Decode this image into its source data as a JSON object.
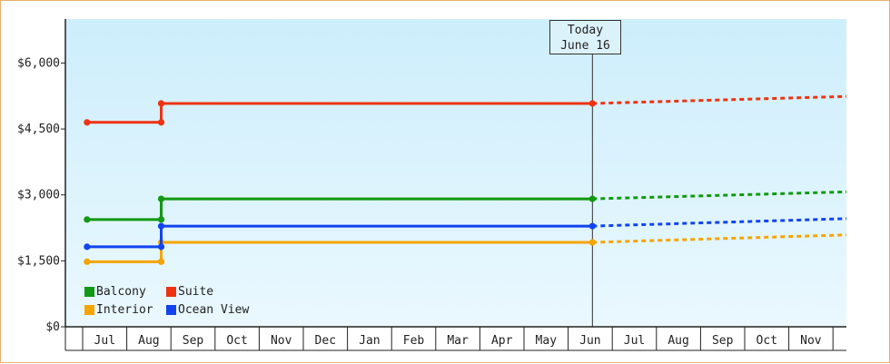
{
  "chart_data": {
    "type": "line",
    "step": true,
    "categories": [
      "Jul",
      "Aug",
      "Sep",
      "Oct",
      "Nov",
      "Dec",
      "Jan",
      "Feb",
      "Mar",
      "Apr",
      "May",
      "Jun",
      "Jul",
      "Aug",
      "Sep",
      "Oct",
      "Nov"
    ],
    "ylim": [
      0,
      7000
    ],
    "yticks": [
      0,
      1500,
      3000,
      4500,
      6000
    ],
    "ytick_labels": [
      "$0",
      "$1,500",
      "$3,000",
      "$4,500",
      "$6,000"
    ],
    "today": {
      "line1": "Today",
      "line2": "June 16",
      "x": 11.05
    },
    "series": [
      {
        "name": "Balcony",
        "color": "#119911",
        "points": [
          [
            -0.4,
            2440
          ],
          [
            1.28,
            2440
          ],
          [
            1.28,
            2910
          ],
          [
            11.05,
            2910
          ]
        ],
        "forecast": [
          [
            11.05,
            2910
          ],
          [
            17.4,
            3070
          ]
        ]
      },
      {
        "name": "Suite",
        "color": "#ee3311",
        "points": [
          [
            -0.4,
            4650
          ],
          [
            1.28,
            4650
          ],
          [
            1.28,
            5080
          ],
          [
            11.05,
            5080
          ]
        ],
        "forecast": [
          [
            11.05,
            5080
          ],
          [
            17.4,
            5240
          ]
        ]
      },
      {
        "name": "Interior",
        "color": "#f5a400",
        "points": [
          [
            -0.4,
            1480
          ],
          [
            1.28,
            1480
          ],
          [
            1.28,
            1920
          ],
          [
            11.05,
            1920
          ]
        ],
        "forecast": [
          [
            11.05,
            1920
          ],
          [
            17.4,
            2090
          ]
        ]
      },
      {
        "name": "Ocean View",
        "color": "#1144ee",
        "points": [
          [
            -0.4,
            1820
          ],
          [
            1.28,
            1820
          ],
          [
            1.28,
            2290
          ],
          [
            11.05,
            2290
          ]
        ],
        "forecast": [
          [
            11.05,
            2290
          ],
          [
            17.4,
            2460
          ]
        ]
      }
    ],
    "legend": "bottom-left",
    "grid": true
  }
}
